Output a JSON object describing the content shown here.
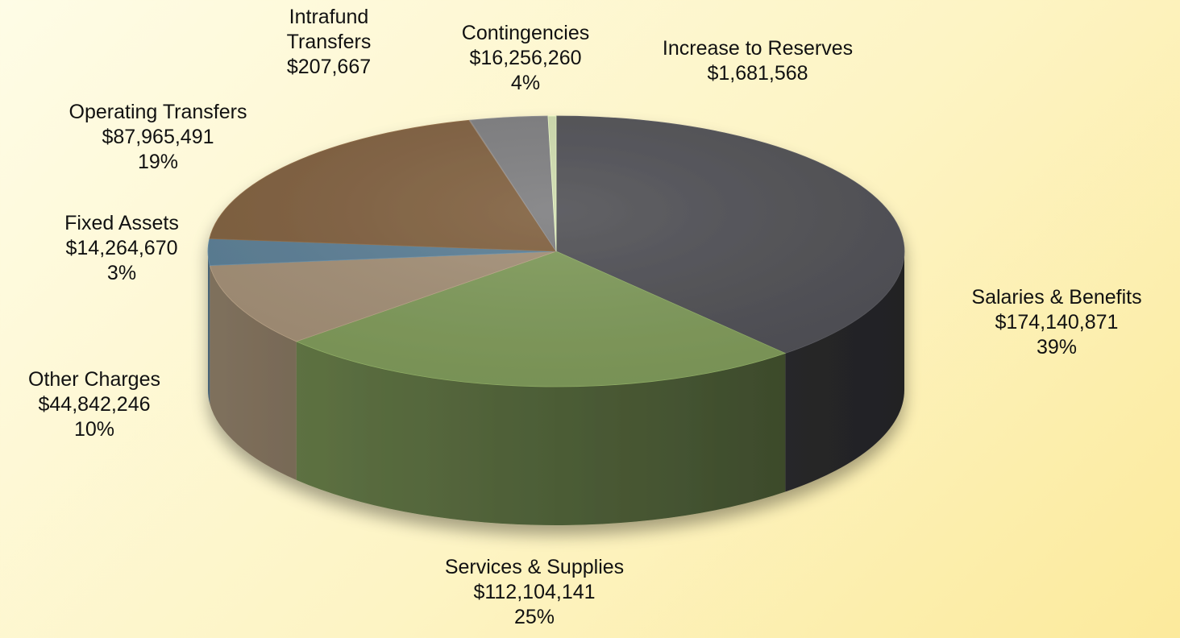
{
  "chart_data": {
    "type": "pie",
    "title": "",
    "slices": [
      {
        "label": "Salaries & Benefits",
        "value": 174140871,
        "value_text": "$174,140,871",
        "percent_text": "39%",
        "color": "#505055"
      },
      {
        "label": "Services & Supplies",
        "value": 112104141,
        "value_text": "$112,104,141",
        "percent_text": "25%",
        "color": "#7f9a5a"
      },
      {
        "label": "Other Charges",
        "value": 44842246,
        "value_text": "$44,842,246",
        "percent_text": "10%",
        "color": "#a38f76"
      },
      {
        "label": "Fixed Assets",
        "value": 14264670,
        "value_text": "$14,264,670",
        "percent_text": "3%",
        "color": "#5b7e95"
      },
      {
        "label": "Operating Transfers",
        "value": 87965491,
        "value_text": "$87,965,491",
        "percent_text": "19%",
        "color": "#80603f"
      },
      {
        "label": "Intrafund\nTransfers",
        "value": 207667,
        "value_text": "$207,667",
        "percent_text": "",
        "color": "#8a7a6a"
      },
      {
        "label": "Contingencies",
        "value": 16256260,
        "value_text": "$16,256,260",
        "percent_text": "4%",
        "color": "#7e7e80"
      },
      {
        "label": "Increase to Reserves",
        "value": 1681568,
        "value_text": "$1,681,568",
        "percent_text": "",
        "color": "#cfdcae"
      }
    ],
    "legend": "none",
    "three_d": true
  }
}
